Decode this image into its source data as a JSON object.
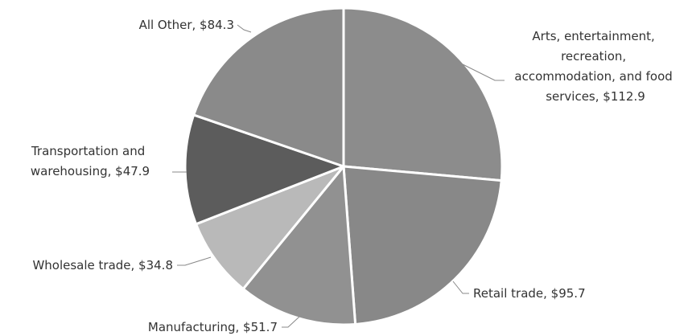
{
  "chart_data": {
    "type": "pie",
    "values": [
      112.9,
      95.7,
      51.7,
      34.8,
      47.9,
      84.3
    ],
    "value_labels": [
      "Arts, entertainment, recreation, accommodation, and food services, $112.9",
      "Retail trade, $95.7",
      "Manufacturing, $51.7",
      "Wholesale trade, $34.8",
      "Transportation and warehousing, $47.9",
      "All Other, $84.3"
    ],
    "colors": [
      "#8c8c8c",
      "#888888",
      "#919191",
      "#b9b9b9",
      "#5c5c5c",
      "#8a8a8a"
    ]
  }
}
